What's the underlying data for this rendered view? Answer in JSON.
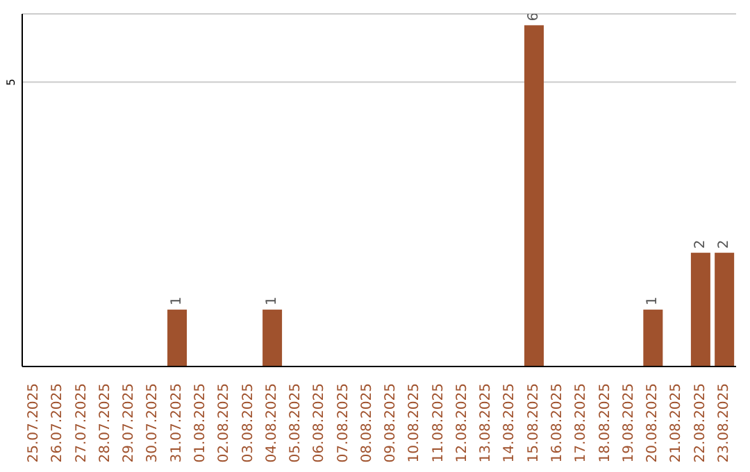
{
  "chart_data": {
    "type": "bar",
    "categories": [
      "25.07.2025",
      "26.07.2025",
      "27.07.2025",
      "28.07.2025",
      "29.07.2025",
      "30.07.2025",
      "31.07.2025",
      "01.08.2025",
      "02.08.2025",
      "03.08.2025",
      "04.08.2025",
      "05.08.2025",
      "06.08.2025",
      "07.08.2025",
      "08.08.2025",
      "09.08.2025",
      "10.08.2025",
      "11.08.2025",
      "12.08.2025",
      "13.08.2025",
      "14.08.2025",
      "15.08.2025",
      "16.08.2025",
      "17.08.2025",
      "18.08.2025",
      "19.08.2025",
      "20.08.2025",
      "21.08.2025",
      "22.08.2025",
      "23.08.2025"
    ],
    "values": [
      0,
      0,
      0,
      0,
      0,
      0,
      1,
      0,
      0,
      0,
      1,
      0,
      0,
      0,
      0,
      0,
      0,
      0,
      0,
      0,
      0,
      6,
      0,
      0,
      0,
      0,
      1,
      0,
      2,
      2
    ],
    "value_labels": [
      null,
      null,
      null,
      null,
      null,
      null,
      "1",
      null,
      null,
      null,
      "1",
      null,
      null,
      null,
      null,
      null,
      null,
      null,
      null,
      null,
      null,
      "6",
      null,
      null,
      null,
      null,
      "1",
      null,
      "2",
      "2"
    ],
    "color": "#a0522d",
    "ylim": [
      0,
      6.2
    ],
    "yticks": [
      5
    ],
    "grid": "y"
  }
}
